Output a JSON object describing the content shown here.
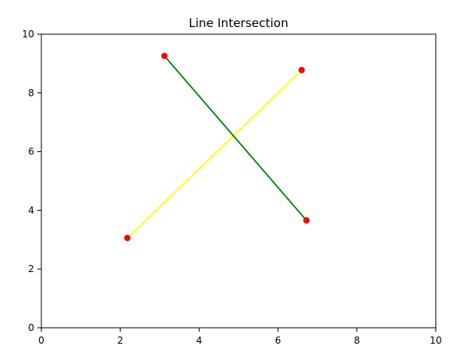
{
  "chart_data": {
    "type": "line",
    "title": "Line Intersection",
    "xlabel": "",
    "ylabel": "",
    "xlim": [
      0,
      10
    ],
    "ylim": [
      0,
      10
    ],
    "xticks": [
      0,
      2,
      4,
      6,
      8,
      10
    ],
    "yticks": [
      0,
      2,
      4,
      6,
      8,
      10
    ],
    "xtick_labels": [
      "0",
      "2",
      "4",
      "6",
      "8",
      "10"
    ],
    "ytick_labels": [
      "0",
      "2",
      "4",
      "6",
      "8",
      "10"
    ],
    "grid": false,
    "series": [
      {
        "color": "#ffff00",
        "points": [
          {
            "x": 2.18,
            "y": 3.06
          },
          {
            "x": 6.6,
            "y": 8.78
          }
        ]
      },
      {
        "color": "#008000",
        "points": [
          {
            "x": 3.12,
            "y": 9.26
          },
          {
            "x": 6.72,
            "y": 3.66
          }
        ]
      }
    ],
    "marker_color": "#ff0000"
  }
}
